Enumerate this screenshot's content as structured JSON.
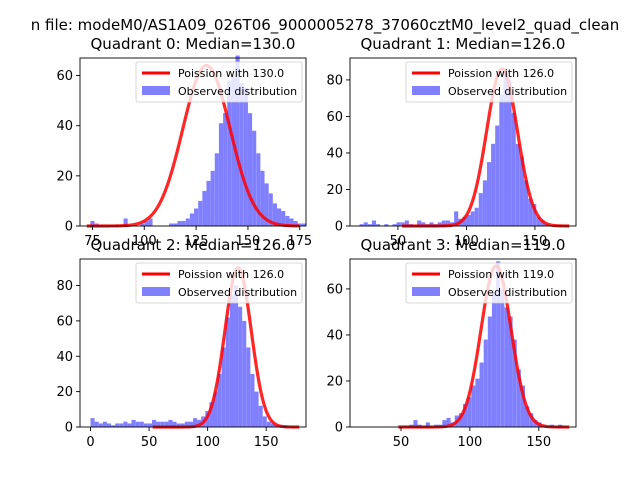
{
  "figure": {
    "suptitle": "n file: modeM0/AS1A09_026T06_9000005278_37060cztM0_level2_quad_clean"
  },
  "colors": {
    "fit_line": "#ff0000",
    "histogram": "#8080ff",
    "legend_border": "#cccccc"
  },
  "chart_data": [
    {
      "type": "bar",
      "title": "Quadrant 0: Median=130.0",
      "xlim": [
        69,
        178
      ],
      "ylim": [
        0,
        67
      ],
      "xticks": [
        75,
        100,
        125,
        150,
        175
      ],
      "yticks": [
        0,
        20,
        40,
        60
      ],
      "legend": [
        "Poission with 130.0",
        "Observed distribution"
      ],
      "legend_position": "top-right",
      "poisson_mean": 130.0,
      "poisson_scale": 64,
      "hist": {
        "start": 74,
        "width": 2,
        "counts": [
          2,
          1,
          0,
          0,
          0,
          0,
          0,
          0,
          3,
          0,
          0,
          0,
          1,
          2,
          3,
          0,
          0,
          0,
          0,
          1,
          1,
          2,
          2,
          3,
          5,
          7,
          10,
          14,
          18,
          22,
          29,
          41,
          45,
          58,
          60,
          68,
          57,
          55,
          45,
          38,
          29,
          22,
          17,
          13,
          9,
          7,
          6,
          4,
          3,
          2,
          1,
          1
        ]
      }
    },
    {
      "type": "bar",
      "title": "Quadrant 1: Median=126.0",
      "xlim": [
        15,
        180
      ],
      "ylim": [
        0,
        92
      ],
      "xticks": [
        50,
        100,
        150
      ],
      "yticks": [
        0,
        20,
        40,
        60,
        80
      ],
      "legend": [
        "Poission with 126.0",
        "Observed distribution"
      ],
      "legend_position": "top-right",
      "poisson_mean": 126.0,
      "poisson_scale": 86,
      "hist": {
        "start": 22,
        "width": 3,
        "counts": [
          1,
          2,
          1,
          3,
          1,
          0,
          1,
          0,
          1,
          2,
          2,
          3,
          1,
          0,
          3,
          2,
          1,
          2,
          1,
          2,
          3,
          3,
          2,
          8,
          4,
          5,
          6,
          8,
          10,
          18,
          25,
          35,
          45,
          55,
          72,
          85,
          80,
          62,
          45,
          38,
          25,
          15,
          12,
          5,
          3,
          1
        ]
      }
    },
    {
      "type": "bar",
      "title": "Quadrant 2: Median=126.0",
      "xlim": [
        -9,
        184
      ],
      "ylim": [
        0,
        95
      ],
      "xticks": [
        0,
        50,
        100,
        150
      ],
      "yticks": [
        0,
        20,
        40,
        60,
        80
      ],
      "legend": [
        "Poission with 126.0",
        "Observed distribution"
      ],
      "legend_position": "top-right",
      "poisson_mean": 126.0,
      "poisson_scale": 90,
      "hist": {
        "start": 0,
        "width": 3.5,
        "counts": [
          5,
          3,
          2,
          3,
          2,
          1,
          2,
          2,
          3,
          2,
          4,
          3,
          3,
          2,
          2,
          4,
          3,
          3,
          3,
          4,
          3,
          2,
          2,
          3,
          3,
          5,
          4,
          6,
          9,
          14,
          20,
          30,
          45,
          62,
          75,
          80,
          68,
          60,
          45,
          30,
          20,
          12,
          6,
          3,
          2,
          1,
          1,
          1
        ]
      }
    },
    {
      "type": "bar",
      "title": "Quadrant 3: Median=119.0",
      "xlim": [
        13,
        177
      ],
      "ylim": [
        0,
        73
      ],
      "xticks": [
        50,
        100,
        150
      ],
      "yticks": [
        0,
        20,
        40,
        60
      ],
      "legend": [
        "Poission with 119.0",
        "Observed distribution"
      ],
      "legend_position": "top-right",
      "poisson_mean": 119.0,
      "poisson_scale": 70,
      "hist": {
        "start": 20,
        "width": 3,
        "counts": [
          0,
          0,
          0,
          0,
          0,
          0,
          0,
          0,
          0,
          0,
          0,
          0,
          1,
          3,
          1,
          0,
          2,
          0,
          1,
          1,
          3,
          4,
          2,
          5,
          6,
          10,
          13,
          18,
          21,
          28,
          38,
          48,
          58,
          72,
          60,
          52,
          48,
          38,
          25,
          18,
          9,
          6,
          3,
          2,
          1,
          0,
          1,
          0,
          1
        ]
      }
    }
  ]
}
